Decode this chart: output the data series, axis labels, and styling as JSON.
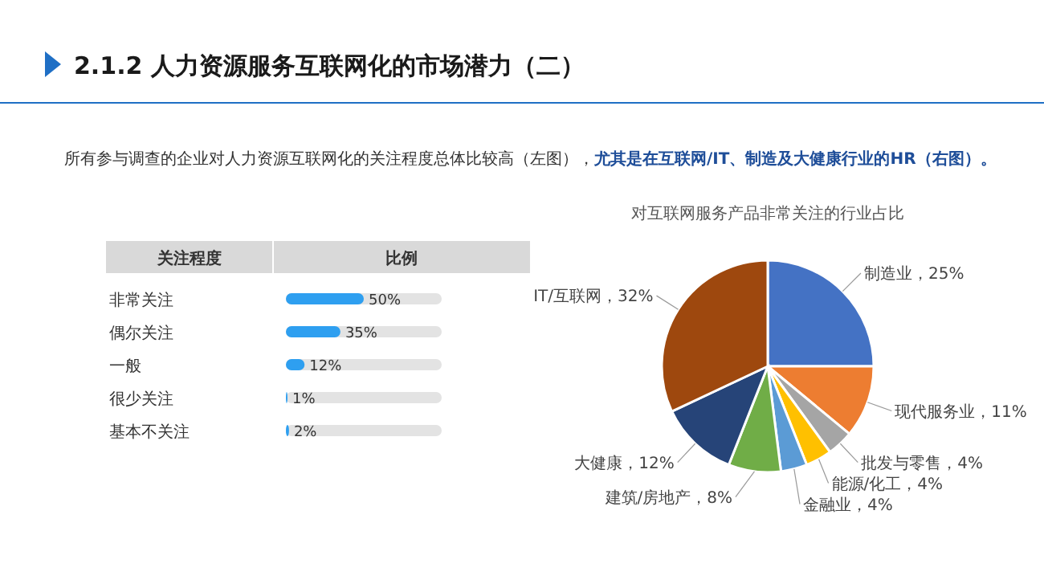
{
  "chart_data": [
    {
      "type": "bar",
      "orientation": "horizontal",
      "title": "2.1.2  人力资源服务互联网化的市场潜力（二）",
      "subtitle": "所有参与调查的企业对人力资源互联网化的关注程度总体比较高（左图），**尤其是在互联网/IT、制造及大健康行业的HR（右图）。**",
      "ylabel": "关注程度",
      "xlabel": "比例",
      "categories": [
        "非常关注",
        "偶尔关注",
        "一般",
        "很少关注",
        "基本不关注"
      ],
      "values": [
        50,
        35,
        12,
        1,
        2
      ],
      "value_labels": [
        "50%",
        "35%",
        "12%",
        "1%",
        "2%"
      ],
      "color": "#2e9ff0",
      "xlim": [
        0,
        100
      ]
    },
    {
      "type": "pie",
      "title": "对互联网服务产品非常关注的行业占比",
      "categories": [
        "制造业",
        "现代服务业",
        "批发与零售",
        "能源/化工",
        "金融业",
        "建筑/房地产",
        "大健康",
        "IT/互联网"
      ],
      "values": [
        25,
        11,
        4,
        4,
        4,
        8,
        12,
        32
      ],
      "value_labels": [
        "25%",
        "11%",
        "4%",
        "4%",
        "4%",
        "8%",
        "12%",
        "32%"
      ],
      "colors": [
        "#4472c4",
        "#ed7d31",
        "#a5a5a5",
        "#ffc000",
        "#5b9bd5",
        "#70ad47",
        "#264478",
        "#9e480e"
      ]
    }
  ]
}
